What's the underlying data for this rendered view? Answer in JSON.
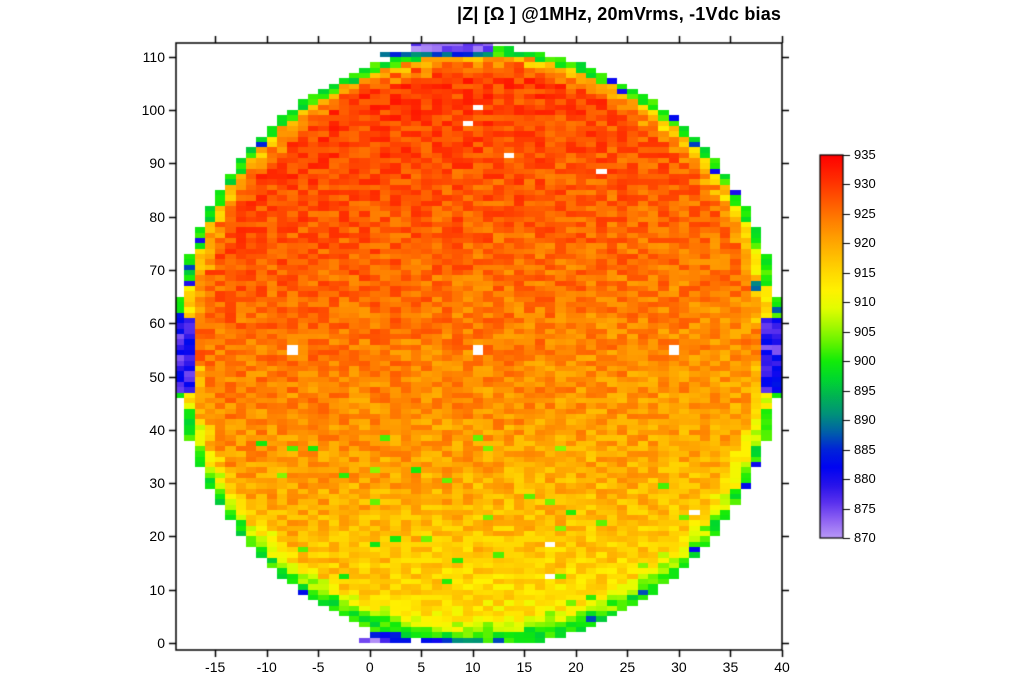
{
  "figure": {
    "background": "#ffffff",
    "border_color": "#000000",
    "tick_color": "#000000",
    "text_color": "#000000"
  },
  "chart_data": {
    "type": "heatmap",
    "title": "|Z| [Ω ] @1MHz, 20mVrms, -1Vdc bias",
    "xlabel": "",
    "ylabel": "",
    "grid": false,
    "x_axis": {
      "range": [
        -18.8,
        40
      ],
      "ticks": [
        -15,
        -10,
        -5,
        0,
        5,
        10,
        15,
        20,
        25,
        30,
        35,
        40
      ]
    },
    "y_axis": {
      "range": [
        -1.3,
        112.6
      ],
      "ticks": [
        0,
        10,
        20,
        30,
        40,
        50,
        60,
        70,
        80,
        90,
        100,
        110
      ]
    },
    "colorbar": {
      "min": 870,
      "max": 935,
      "ticks": [
        870,
        875,
        880,
        885,
        890,
        895,
        900,
        905,
        910,
        915,
        920,
        925,
        930,
        935
      ],
      "position": "right"
    },
    "colormap_stops": [
      [
        870,
        "#b999f7"
      ],
      [
        873,
        "#8f63f3"
      ],
      [
        876,
        "#5a31ee"
      ],
      [
        879,
        "#2713ea"
      ],
      [
        882,
        "#0004f2"
      ],
      [
        885,
        "#0023d9"
      ],
      [
        888,
        "#0060a8"
      ],
      [
        891,
        "#00917a"
      ],
      [
        894,
        "#00b353"
      ],
      [
        897,
        "#00d72e"
      ],
      [
        900,
        "#12ec09"
      ],
      [
        903,
        "#5ff300"
      ],
      [
        906,
        "#a5f900"
      ],
      [
        909,
        "#e3fd00"
      ],
      [
        912,
        "#fff200"
      ],
      [
        915,
        "#ffd900"
      ],
      [
        918,
        "#ffbc00"
      ],
      [
        921,
        "#ff9e00"
      ],
      [
        924,
        "#ff7d00"
      ],
      [
        927,
        "#ff5a00"
      ],
      [
        930,
        "#ff3600"
      ],
      [
        935,
        "#ff0000"
      ]
    ],
    "wafer": {
      "center_x": 10.5,
      "center_y": 55.5,
      "radius_x": 29.4,
      "radius_y": 56.4,
      "cell_width": 1,
      "cell_height": 1,
      "col_min": -19,
      "col_max": 39,
      "row_min": 0,
      "row_max": 112
    },
    "value_model": {
      "description": "Estimated |Z| (ohms): ~928 near wafer top, ~923 center, ~911 bottom; 1-cell green ring (~896-903) at edge; scattered teal/blue edge cells; blue/violet anomaly patches at left, right, top and bottom edges; white cells = no data",
      "base_min": 909,
      "base_span": 21,
      "row_exponent": 0.52,
      "left_right_tilt": 1.5,
      "noise_amplitude": 7.6,
      "seed": 13,
      "edge_ring": {
        "outer_threshold": 0.975,
        "outer_green": [
          896,
          903
        ],
        "mid_threshold": 0.95,
        "mid_drop": 8,
        "inner_threshold": 0.92,
        "inner_drop": 3,
        "blue_chance": 0.1,
        "blue_range": [
          879,
          888
        ]
      },
      "speckle": {
        "row_below": 40,
        "chance": 0.025,
        "range": [
          899,
          905
        ]
      }
    },
    "missing_cells": [
      [
        10,
        100
      ],
      [
        9,
        97
      ],
      [
        13,
        91
      ],
      [
        22,
        88
      ],
      [
        -8,
        54
      ],
      [
        -8,
        55
      ],
      [
        10,
        54
      ],
      [
        10,
        55
      ],
      [
        29,
        54
      ],
      [
        29,
        55
      ],
      [
        31,
        24
      ],
      [
        17,
        18
      ],
      [
        17,
        12
      ],
      [
        4,
        0
      ]
    ],
    "edge_patches": [
      {
        "x": [
          -19,
          -17
        ],
        "y": [
          47,
          61
        ],
        "v": [
          873,
          884
        ],
        "note": "left-edge blue"
      },
      {
        "x": [
          38,
          40
        ],
        "y": [
          47,
          61
        ],
        "v": [
          873,
          884
        ],
        "note": "right-edge blue"
      },
      {
        "x": [
          4,
          12
        ],
        "y": [
          111,
          113
        ],
        "v": [
          870,
          877
        ],
        "note": "top violet rows"
      },
      {
        "x": [
          1,
          12
        ],
        "y": [
          110,
          111
        ],
        "v": [
          883,
          893
        ],
        "note": "top teal-blue row"
      },
      {
        "x": [
          -1,
          1
        ],
        "y": [
          0,
          1
        ],
        "v": [
          870,
          875
        ],
        "note": "bottom violet cell"
      },
      {
        "x": [
          8,
          11
        ],
        "y": [
          0,
          1
        ],
        "v": [
          887,
          892
        ],
        "note": "bottom teal cells"
      },
      {
        "x": [
          -1,
          11
        ],
        "y": [
          0,
          1
        ],
        "v": [
          877,
          886
        ],
        "note": "bottom blue row"
      },
      {
        "x": [
          0,
          3
        ],
        "y": [
          1,
          2
        ],
        "v": [
          880,
          888
        ],
        "note": "bottom blue row 2"
      },
      {
        "x": [
          24,
          25
        ],
        "y": [
          103,
          104
        ],
        "v": [
          878,
          884
        ],
        "note": "upper-right blue cell"
      },
      {
        "x": [
          37,
          38
        ],
        "y": [
          66,
          68
        ],
        "v": [
          887,
          892
        ],
        "note": "right teal cells"
      }
    ]
  }
}
